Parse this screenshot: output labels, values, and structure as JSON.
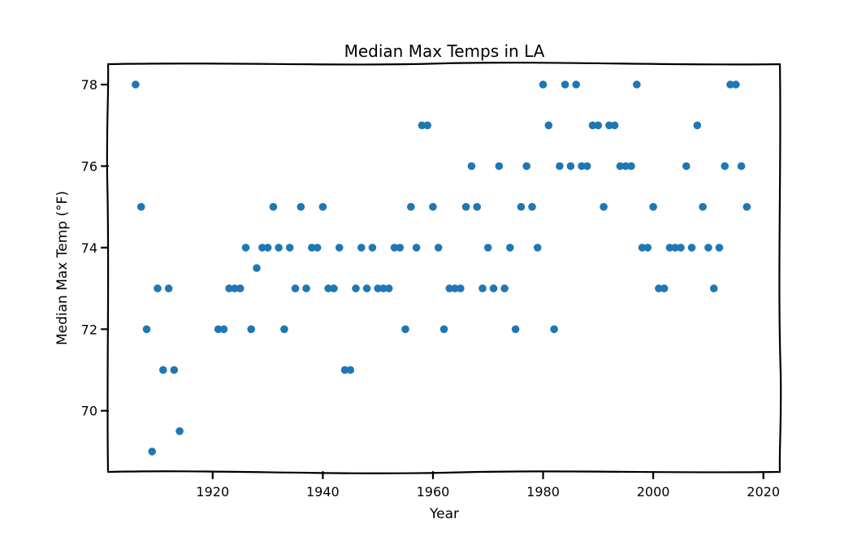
{
  "chart_data": {
    "type": "scatter",
    "title": "Median Max Temps in LA",
    "xlabel": "Year",
    "ylabel": "Median Max Temp (°F)",
    "xlim": [
      1901,
      2023
    ],
    "ylim": [
      68.5,
      78.5
    ],
    "xticks": [
      1920,
      1940,
      1960,
      1980,
      2000,
      2020
    ],
    "yticks": [
      70,
      72,
      74,
      76,
      78
    ],
    "grid": false,
    "color": "#1f77b4",
    "points": [
      [
        1906,
        78
      ],
      [
        1907,
        75
      ],
      [
        1908,
        72
      ],
      [
        1909,
        69
      ],
      [
        1910,
        73
      ],
      [
        1911,
        71
      ],
      [
        1912,
        73
      ],
      [
        1913,
        71
      ],
      [
        1914,
        69.5
      ],
      [
        1921,
        72
      ],
      [
        1922,
        72
      ],
      [
        1923,
        73
      ],
      [
        1924,
        73
      ],
      [
        1925,
        73
      ],
      [
        1926,
        74
      ],
      [
        1927,
        72
      ],
      [
        1928,
        73.5
      ],
      [
        1929,
        74
      ],
      [
        1930,
        74
      ],
      [
        1931,
        75
      ],
      [
        1932,
        74
      ],
      [
        1933,
        72
      ],
      [
        1934,
        74
      ],
      [
        1935,
        73
      ],
      [
        1936,
        75
      ],
      [
        1937,
        73
      ],
      [
        1938,
        74
      ],
      [
        1939,
        74
      ],
      [
        1940,
        75
      ],
      [
        1941,
        73
      ],
      [
        1942,
        73
      ],
      [
        1943,
        74
      ],
      [
        1944,
        71
      ],
      [
        1945,
        71
      ],
      [
        1946,
        73
      ],
      [
        1947,
        74
      ],
      [
        1948,
        73
      ],
      [
        1949,
        74
      ],
      [
        1950,
        73
      ],
      [
        1951,
        73
      ],
      [
        1952,
        73
      ],
      [
        1953,
        74
      ],
      [
        1954,
        74
      ],
      [
        1955,
        72
      ],
      [
        1956,
        75
      ],
      [
        1957,
        74
      ],
      [
        1958,
        77
      ],
      [
        1959,
        77
      ],
      [
        1960,
        75
      ],
      [
        1961,
        74
      ],
      [
        1962,
        72
      ],
      [
        1963,
        73
      ],
      [
        1964,
        73
      ],
      [
        1965,
        73
      ],
      [
        1966,
        75
      ],
      [
        1967,
        76
      ],
      [
        1968,
        75
      ],
      [
        1969,
        73
      ],
      [
        1970,
        74
      ],
      [
        1971,
        73
      ],
      [
        1972,
        76
      ],
      [
        1973,
        73
      ],
      [
        1974,
        74
      ],
      [
        1975,
        72
      ],
      [
        1976,
        75
      ],
      [
        1977,
        76
      ],
      [
        1978,
        75
      ],
      [
        1979,
        74
      ],
      [
        1980,
        78
      ],
      [
        1981,
        77
      ],
      [
        1982,
        72
      ],
      [
        1983,
        76
      ],
      [
        1984,
        78
      ],
      [
        1985,
        76
      ],
      [
        1986,
        78
      ],
      [
        1987,
        76
      ],
      [
        1988,
        76
      ],
      [
        1989,
        77
      ],
      [
        1990,
        77
      ],
      [
        1991,
        75
      ],
      [
        1992,
        77
      ],
      [
        1993,
        77
      ],
      [
        1994,
        76
      ],
      [
        1995,
        76
      ],
      [
        1996,
        76
      ],
      [
        1997,
        78
      ],
      [
        1998,
        74
      ],
      [
        1999,
        74
      ],
      [
        2000,
        75
      ],
      [
        2001,
        73
      ],
      [
        2002,
        73
      ],
      [
        2003,
        74
      ],
      [
        2004,
        74
      ],
      [
        2005,
        74
      ],
      [
        2006,
        76
      ],
      [
        2007,
        74
      ],
      [
        2008,
        77
      ],
      [
        2009,
        75
      ],
      [
        2010,
        74
      ],
      [
        2011,
        73
      ],
      [
        2012,
        74
      ],
      [
        2013,
        76
      ],
      [
        2014,
        78
      ],
      [
        2015,
        78
      ],
      [
        2016,
        76
      ],
      [
        2017,
        75
      ]
    ]
  }
}
